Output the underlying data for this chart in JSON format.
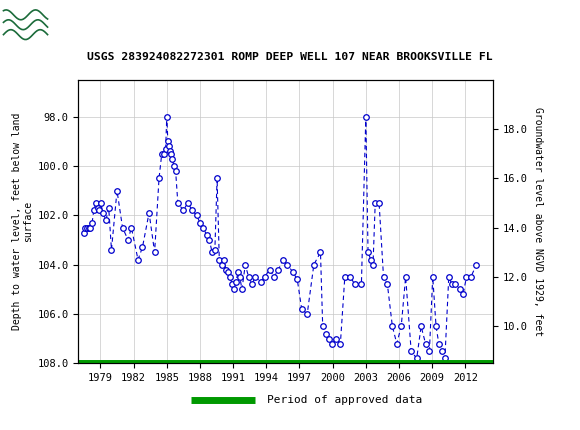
{
  "title": "USGS 283924082272301 ROMP DEEP WELL 107 NEAR BROOKSVILLE FL",
  "ylabel_left": "Depth to water level, feet below land\nsurface",
  "ylabel_right": "Groundwater level above NGVD 1929, feet",
  "ylim_left": [
    108.0,
    96.5
  ],
  "ylim_right": [
    8.5,
    20.0
  ],
  "yticks_left": [
    98.0,
    100.0,
    102.0,
    104.0,
    106.0,
    108.0
  ],
  "yticks_right": [
    10.0,
    12.0,
    14.0,
    16.0,
    18.0
  ],
  "xlim": [
    1977.0,
    2014.5
  ],
  "xticks": [
    1979,
    1982,
    1985,
    1988,
    1991,
    1994,
    1997,
    2000,
    2003,
    2006,
    2009,
    2012
  ],
  "header_color": "#1b6b3a",
  "line_color": "#0000cc",
  "marker_color": "#0000cc",
  "background_color": "#ffffff",
  "grid_color": "#c8c8c8",
  "legend_line_color": "#009900",
  "legend_label": "Period of approved data",
  "data_x": [
    1977.5,
    1977.65,
    1977.8,
    1977.95,
    1978.1,
    1978.25,
    1978.4,
    1978.6,
    1978.75,
    1978.9,
    1979.05,
    1979.2,
    1979.5,
    1979.75,
    1980.0,
    1980.5,
    1981.0,
    1981.5,
    1981.8,
    1982.4,
    1982.8,
    1983.4,
    1983.9,
    1984.3,
    1984.55,
    1984.75,
    1984.9,
    1985.0,
    1985.1,
    1985.2,
    1985.3,
    1985.4,
    1985.5,
    1985.65,
    1985.8,
    1986.0,
    1986.5,
    1986.9,
    1987.3,
    1987.7,
    1988.0,
    1988.3,
    1988.6,
    1988.85,
    1989.1,
    1989.35,
    1989.55,
    1989.75,
    1989.95,
    1990.15,
    1990.35,
    1990.55,
    1990.75,
    1990.9,
    1991.05,
    1991.25,
    1991.45,
    1991.6,
    1991.8,
    1992.1,
    1992.4,
    1992.7,
    1993.0,
    1993.5,
    1993.85,
    1994.3,
    1994.7,
    1995.1,
    1995.5,
    1995.9,
    1996.4,
    1996.8,
    1997.2,
    1997.7,
    1998.3,
    1998.9,
    1999.1,
    1999.4,
    1999.7,
    1999.95,
    2000.3,
    2000.7,
    2001.1,
    2001.6,
    2002.0,
    2002.6,
    2003.0,
    2003.2,
    2003.45,
    2003.65,
    2003.85,
    2004.2,
    2004.6,
    2004.95,
    2005.4,
    2005.8,
    2006.2,
    2006.6,
    2007.1,
    2007.6,
    2008.0,
    2008.4,
    2008.75,
    2009.05,
    2009.35,
    2009.6,
    2009.9,
    2010.15,
    2010.5,
    2010.8,
    2011.1,
    2011.5,
    2011.8,
    2012.1,
    2012.5,
    2013.0
  ],
  "data_y": [
    102.7,
    102.5,
    102.5,
    102.5,
    102.5,
    102.3,
    101.8,
    101.5,
    101.7,
    101.8,
    101.5,
    101.9,
    102.2,
    101.7,
    103.4,
    101.0,
    102.5,
    103.0,
    102.5,
    103.8,
    103.3,
    101.9,
    103.5,
    100.5,
    99.5,
    99.5,
    99.3,
    98.0,
    99.0,
    99.2,
    99.4,
    99.5,
    99.7,
    100.0,
    100.2,
    101.5,
    101.8,
    101.5,
    101.8,
    102.0,
    102.3,
    102.5,
    102.8,
    103.0,
    103.5,
    103.4,
    100.5,
    103.8,
    104.0,
    103.8,
    104.2,
    104.3,
    104.5,
    104.8,
    105.0,
    104.7,
    104.3,
    104.5,
    105.0,
    104.0,
    104.5,
    104.8,
    104.5,
    104.7,
    104.5,
    104.2,
    104.5,
    104.2,
    103.8,
    104.0,
    104.3,
    104.6,
    105.8,
    106.0,
    104.0,
    103.5,
    106.5,
    106.8,
    107.0,
    107.2,
    107.0,
    107.2,
    104.5,
    104.5,
    104.8,
    104.8,
    98.0,
    103.5,
    103.8,
    104.0,
    101.5,
    101.5,
    104.5,
    104.8,
    106.5,
    107.2,
    106.5,
    104.5,
    107.5,
    107.8,
    106.5,
    107.2,
    107.5,
    104.5,
    106.5,
    107.2,
    107.5,
    107.8,
    104.5,
    104.8,
    104.8,
    105.0,
    105.2,
    104.5,
    104.5,
    104.0
  ]
}
